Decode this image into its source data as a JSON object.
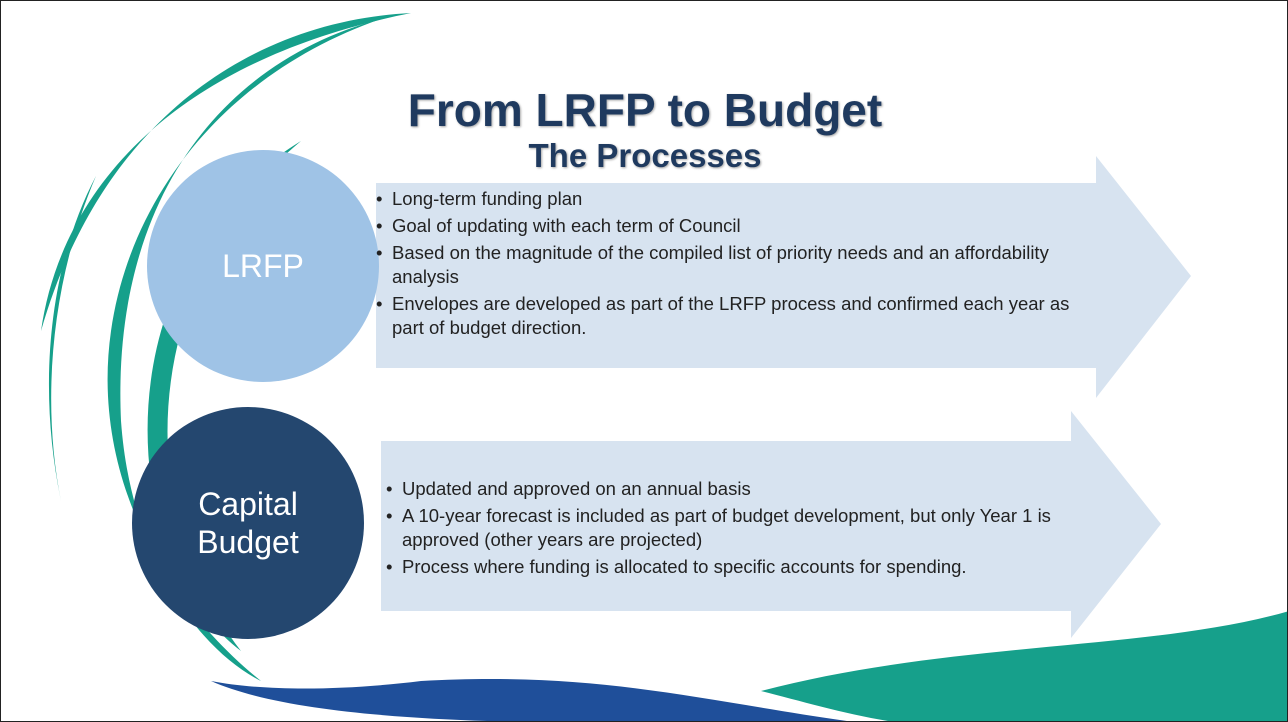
{
  "title": "From LRFP to Budget",
  "subtitle": "The Processes",
  "sections": [
    {
      "label_lines": [
        "LRFP"
      ],
      "bullets": [
        "Long-term funding plan",
        "Goal of updating with each term of Council",
        "Based on the magnitude of the compiled list of priority needs and an affordability analysis",
        "Envelopes are developed as part of the LRFP process and confirmed each year as part of budget direction."
      ]
    },
    {
      "label_lines": [
        "Capital",
        "Budget"
      ],
      "bullets": [
        "Updated and approved on an annual basis",
        "A 10-year forecast is included as part of budget development, but only Year 1 is approved (other years are projected)",
        "Process where funding is allocated to specific accounts for spending."
      ]
    }
  ]
}
